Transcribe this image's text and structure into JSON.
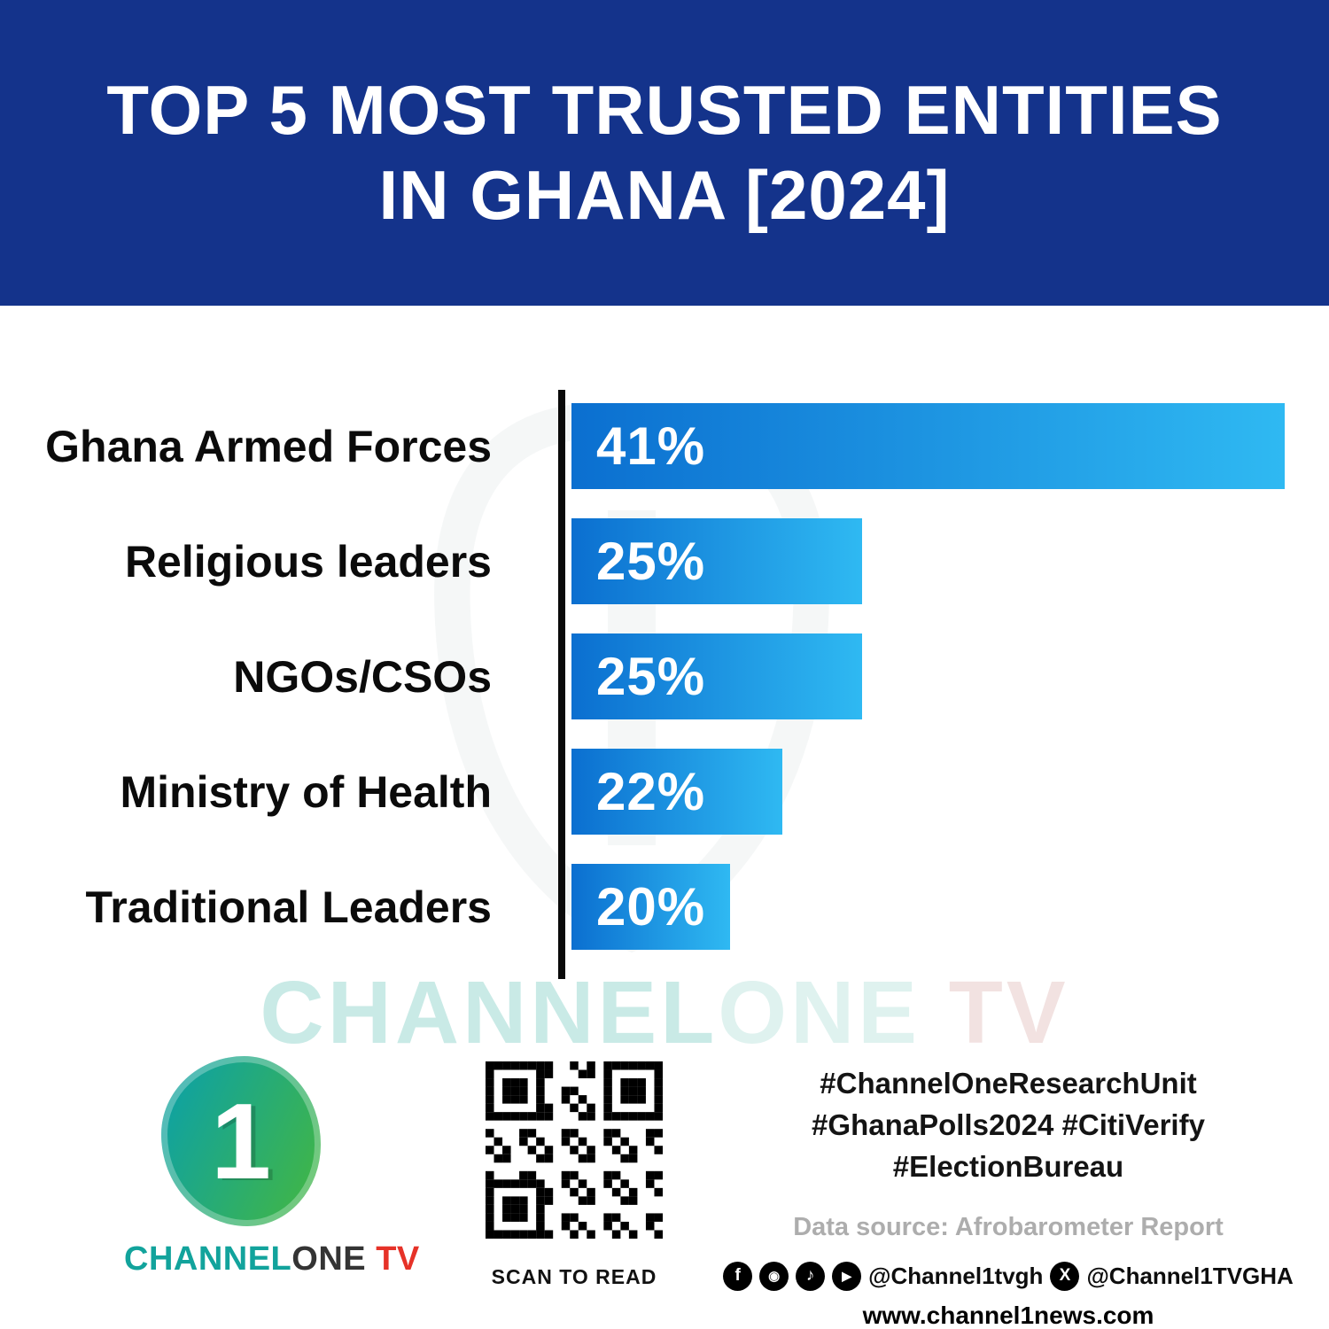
{
  "header": {
    "title_line1": "TOP 5 MOST TRUSTED ENTITIES",
    "title_line2": "IN GHANA [2024]"
  },
  "chart_data": {
    "type": "bar",
    "orientation": "horizontal",
    "title": "Top 5 Most Trusted Entities in Ghana [2024]",
    "categories": [
      "Ghana Armed Forces",
      "Religious leaders",
      "NGOs/CSOs",
      "Ministry of Health",
      "Traditional Leaders"
    ],
    "values": [
      41,
      25,
      25,
      22,
      20
    ],
    "value_labels": [
      "41%",
      "25%",
      "25%",
      "22%",
      "20%"
    ],
    "xlim": [
      0,
      41
    ],
    "grid": false,
    "legend": false,
    "bar_gradient": [
      "#0B6FD0",
      "#2FB9F2"
    ],
    "axis_color": "#0A0A0A"
  },
  "watermark": {
    "part1": "CHANNEL",
    "part2": "ONE",
    "part3": " TV"
  },
  "footer": {
    "logo": {
      "numeral": "1",
      "part_channel": "CHANNEL",
      "part_one": "ONE",
      "part_tv": " TV"
    },
    "qr_caption": "SCAN TO READ",
    "hashtag_lines": [
      "#ChannelOneResearchUnit",
      "#GhanaPolls2024 #CitiVerify",
      "#ElectionBureau"
    ],
    "data_source": "Data source: Afrobarometer Report",
    "social": {
      "glyphs": {
        "facebook": "f",
        "instagram": "◉",
        "tiktok": "♪",
        "youtube": "▶",
        "x": "X"
      },
      "handle_primary": "@Channel1tvgh",
      "handle_x": "@Channel1TVGHA"
    },
    "website": "www.channel1news.com"
  },
  "colors": {
    "header_blue": "#14338B",
    "bar_start": "#0B6FD0",
    "bar_end": "#2FB9F2",
    "axis_color": "#0A0A0A",
    "brand_teal": "#12A39C",
    "brand_green": "#3FB549",
    "brand_red": "#E63228"
  }
}
